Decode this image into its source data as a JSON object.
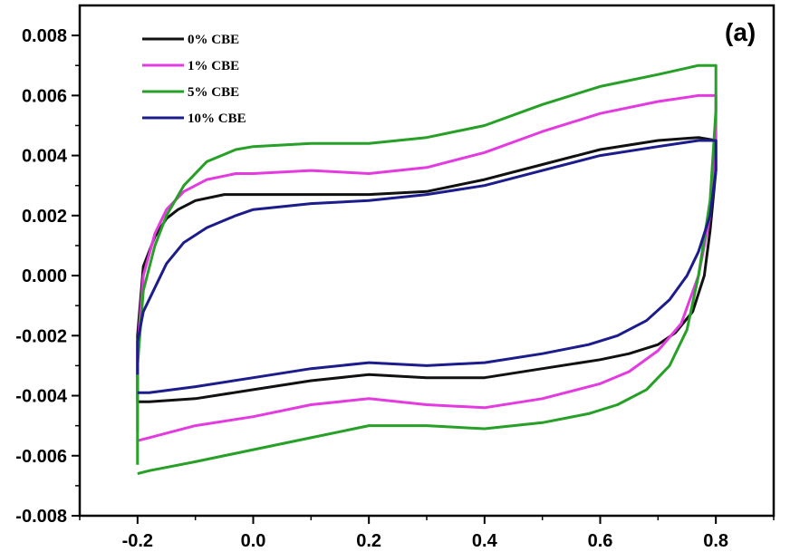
{
  "chart_data": {
    "type": "line",
    "panel_label": "(a)",
    "xlabel": "",
    "ylabel": "",
    "xlim": [
      -0.3,
      0.9
    ],
    "ylim": [
      -0.008,
      0.009
    ],
    "x_ticks": [
      -0.2,
      0.0,
      0.2,
      0.4,
      0.6,
      0.8
    ],
    "x_tick_labels": [
      "-0.2",
      "0.0",
      "0.2",
      "0.4",
      "0.6",
      "0.8"
    ],
    "y_ticks": [
      -0.008,
      -0.006,
      -0.004,
      -0.002,
      0.0,
      0.002,
      0.004,
      0.006,
      0.008
    ],
    "y_tick_labels": [
      "-0.008",
      "-0.006",
      "-0.004",
      "-0.002",
      "0.000",
      "0.002",
      "0.004",
      "0.006",
      "0.008"
    ],
    "legend_position": "top-left",
    "grid": false,
    "series": [
      {
        "name": "0% CBE",
        "color": "#111111",
        "x": [
          -0.2,
          -0.2,
          -0.19,
          -0.17,
          -0.15,
          -0.13,
          -0.1,
          -0.05,
          0.0,
          0.1,
          0.2,
          0.3,
          0.4,
          0.5,
          0.6,
          0.7,
          0.77,
          0.8,
          0.8,
          0.79,
          0.78,
          0.76,
          0.73,
          0.7,
          0.65,
          0.6,
          0.5,
          0.4,
          0.3,
          0.2,
          0.1,
          0.0,
          -0.1,
          -0.18,
          -0.2,
          -0.2
        ],
        "y": [
          -0.0042,
          -0.002,
          0.0003,
          0.0013,
          0.0019,
          0.0022,
          0.0025,
          0.0027,
          0.0027,
          0.0027,
          0.0027,
          0.0028,
          0.0032,
          0.0037,
          0.0042,
          0.0045,
          0.0046,
          0.0045,
          0.0035,
          0.0015,
          0.0,
          -0.0012,
          -0.0019,
          -0.0023,
          -0.0026,
          -0.0028,
          -0.0031,
          -0.0034,
          -0.0034,
          -0.0033,
          -0.0035,
          -0.0038,
          -0.0041,
          -0.0042,
          -0.0042,
          -0.0042
        ]
      },
      {
        "name": "1% CBE",
        "color": "#e43be0",
        "x": [
          -0.2,
          -0.2,
          -0.19,
          -0.17,
          -0.15,
          -0.12,
          -0.08,
          -0.03,
          0.0,
          0.1,
          0.2,
          0.3,
          0.4,
          0.5,
          0.6,
          0.7,
          0.77,
          0.8,
          0.8,
          0.79,
          0.77,
          0.74,
          0.7,
          0.65,
          0.6,
          0.5,
          0.4,
          0.3,
          0.2,
          0.1,
          0.0,
          -0.1,
          -0.18,
          -0.2,
          -0.2
        ],
        "y": [
          -0.0052,
          -0.0025,
          0.0,
          0.0014,
          0.0022,
          0.0028,
          0.0032,
          0.0034,
          0.0034,
          0.0035,
          0.0034,
          0.0036,
          0.0041,
          0.0048,
          0.0054,
          0.0058,
          0.006,
          0.006,
          0.0045,
          0.002,
          0.0,
          -0.0016,
          -0.0025,
          -0.0032,
          -0.0036,
          -0.0041,
          -0.0044,
          -0.0043,
          -0.0041,
          -0.0043,
          -0.0047,
          -0.005,
          -0.0054,
          -0.0055,
          -0.0055
        ]
      },
      {
        "name": "5% CBE",
        "color": "#26a026",
        "x": [
          -0.2,
          -0.2,
          -0.19,
          -0.17,
          -0.15,
          -0.12,
          -0.08,
          -0.03,
          0.0,
          0.1,
          0.2,
          0.3,
          0.4,
          0.5,
          0.6,
          0.7,
          0.77,
          0.8,
          0.8,
          0.79,
          0.77,
          0.75,
          0.72,
          0.68,
          0.63,
          0.58,
          0.5,
          0.4,
          0.3,
          0.2,
          0.1,
          0.0,
          -0.1,
          -0.18,
          -0.2,
          -0.2
        ],
        "y": [
          -0.0063,
          -0.003,
          -0.0005,
          0.001,
          0.002,
          0.003,
          0.0038,
          0.0042,
          0.0043,
          0.0044,
          0.0044,
          0.0046,
          0.005,
          0.0057,
          0.0063,
          0.0067,
          0.007,
          0.007,
          0.0055,
          0.0025,
          0.0,
          -0.0018,
          -0.003,
          -0.0038,
          -0.0043,
          -0.0046,
          -0.0049,
          -0.0051,
          -0.005,
          -0.005,
          -0.0054,
          -0.0058,
          -0.0062,
          -0.0065,
          -0.0066,
          -0.0066
        ]
      },
      {
        "name": "10% CBE",
        "color": "#1c1c8c",
        "x": [
          -0.2,
          -0.2,
          -0.19,
          -0.17,
          -0.15,
          -0.12,
          -0.08,
          -0.03,
          0.0,
          0.1,
          0.2,
          0.3,
          0.4,
          0.5,
          0.6,
          0.7,
          0.77,
          0.8,
          0.8,
          0.79,
          0.77,
          0.75,
          0.72,
          0.68,
          0.63,
          0.58,
          0.5,
          0.4,
          0.3,
          0.2,
          0.1,
          0.0,
          -0.1,
          -0.18,
          -0.2
        ],
        "y": [
          -0.0033,
          -0.0022,
          -0.0012,
          -0.0004,
          0.0004,
          0.0011,
          0.0016,
          0.002,
          0.0022,
          0.0024,
          0.0025,
          0.0027,
          0.003,
          0.0035,
          0.004,
          0.0043,
          0.0045,
          0.0045,
          0.0035,
          0.002,
          0.0008,
          0.0,
          -0.0008,
          -0.0015,
          -0.002,
          -0.0023,
          -0.0026,
          -0.0029,
          -0.003,
          -0.0029,
          -0.0031,
          -0.0034,
          -0.0037,
          -0.0039,
          -0.0039
        ]
      }
    ]
  }
}
